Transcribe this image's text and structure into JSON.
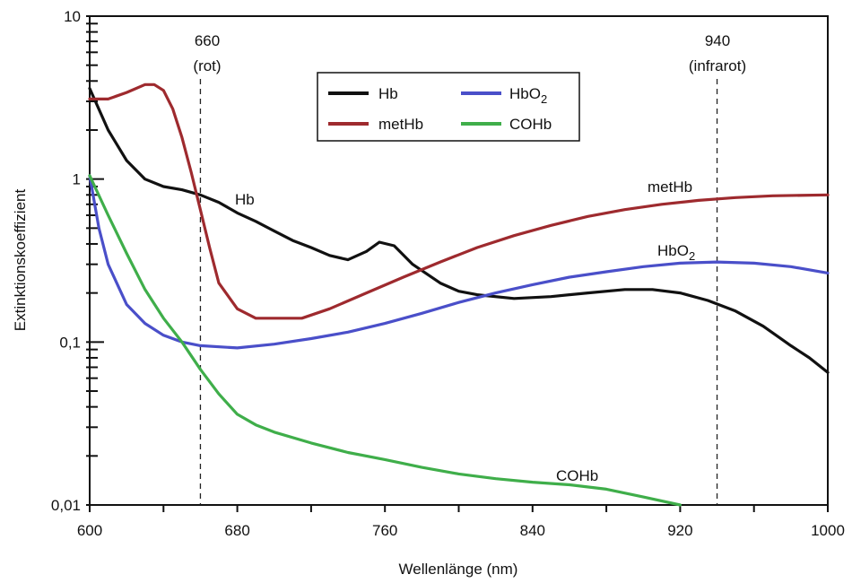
{
  "chart_data": {
    "type": "line",
    "xlabel": "Wellenlänge (nm)",
    "ylabel": "Extinktionskoeffizient",
    "xlim": [
      600,
      1000
    ],
    "ylim": [
      0.01,
      10
    ],
    "yscale": "log",
    "x_ticks": [
      "600",
      "680",
      "760",
      "840",
      "920",
      "1000"
    ],
    "y_ticks": [
      {
        "value": 10,
        "label": "10"
      },
      {
        "value": 1,
        "label": "1"
      },
      {
        "value": 0.1,
        "label": "0,1"
      },
      {
        "value": 0.01,
        "label": "0,01"
      }
    ],
    "grid": false,
    "legend_position": "top-center",
    "reference_lines": [
      {
        "x": 660,
        "label_value": "660",
        "label_note": "(rot)"
      },
      {
        "x": 940,
        "label_value": "940",
        "label_note": "(infrarot)"
      }
    ],
    "series": [
      {
        "name": "Hb",
        "legend_label": "Hb",
        "curve_label": "Hb",
        "color": "#111111",
        "points": [
          [
            600,
            3.6
          ],
          [
            610,
            2.0
          ],
          [
            620,
            1.3
          ],
          [
            630,
            1.0
          ],
          [
            640,
            0.9
          ],
          [
            650,
            0.86
          ],
          [
            660,
            0.8
          ],
          [
            670,
            0.72
          ],
          [
            680,
            0.62
          ],
          [
            690,
            0.55
          ],
          [
            700,
            0.48
          ],
          [
            710,
            0.42
          ],
          [
            720,
            0.38
          ],
          [
            730,
            0.34
          ],
          [
            740,
            0.32
          ],
          [
            750,
            0.36
          ],
          [
            757,
            0.41
          ],
          [
            765,
            0.39
          ],
          [
            775,
            0.3
          ],
          [
            790,
            0.23
          ],
          [
            800,
            0.205
          ],
          [
            810,
            0.195
          ],
          [
            830,
            0.185
          ],
          [
            850,
            0.19
          ],
          [
            870,
            0.2
          ],
          [
            890,
            0.21
          ],
          [
            905,
            0.21
          ],
          [
            920,
            0.2
          ],
          [
            935,
            0.18
          ],
          [
            950,
            0.155
          ],
          [
            965,
            0.125
          ],
          [
            980,
            0.095
          ],
          [
            990,
            0.08
          ],
          [
            1000,
            0.065
          ]
        ]
      },
      {
        "name": "HbO2",
        "legend_label": "HbO",
        "legend_sub": "2",
        "curve_label": "HbO",
        "curve_sub": "2",
        "color": "#4a4fc9",
        "points": [
          [
            600,
            1.05
          ],
          [
            605,
            0.5
          ],
          [
            610,
            0.3
          ],
          [
            620,
            0.17
          ],
          [
            630,
            0.13
          ],
          [
            640,
            0.11
          ],
          [
            650,
            0.1
          ],
          [
            660,
            0.095
          ],
          [
            680,
            0.092
          ],
          [
            700,
            0.097
          ],
          [
            720,
            0.105
          ],
          [
            740,
            0.115
          ],
          [
            760,
            0.13
          ],
          [
            780,
            0.15
          ],
          [
            800,
            0.175
          ],
          [
            820,
            0.2
          ],
          [
            840,
            0.225
          ],
          [
            860,
            0.25
          ],
          [
            880,
            0.27
          ],
          [
            900,
            0.29
          ],
          [
            920,
            0.305
          ],
          [
            940,
            0.31
          ],
          [
            960,
            0.305
          ],
          [
            980,
            0.29
          ],
          [
            1000,
            0.265
          ]
        ]
      },
      {
        "name": "metHb",
        "legend_label": "metHb",
        "curve_label": "metHb",
        "color": "#9e2a2e",
        "points": [
          [
            600,
            3.1
          ],
          [
            610,
            3.1
          ],
          [
            620,
            3.4
          ],
          [
            630,
            3.8
          ],
          [
            635,
            3.8
          ],
          [
            640,
            3.5
          ],
          [
            645,
            2.7
          ],
          [
            650,
            1.8
          ],
          [
            655,
            1.1
          ],
          [
            660,
            0.65
          ],
          [
            665,
            0.38
          ],
          [
            670,
            0.23
          ],
          [
            680,
            0.16
          ],
          [
            690,
            0.14
          ],
          [
            700,
            0.14
          ],
          [
            715,
            0.14
          ],
          [
            730,
            0.16
          ],
          [
            750,
            0.2
          ],
          [
            770,
            0.25
          ],
          [
            790,
            0.31
          ],
          [
            810,
            0.38
          ],
          [
            830,
            0.45
          ],
          [
            850,
            0.52
          ],
          [
            870,
            0.59
          ],
          [
            890,
            0.65
          ],
          [
            910,
            0.7
          ],
          [
            930,
            0.74
          ],
          [
            950,
            0.77
          ],
          [
            970,
            0.79
          ],
          [
            1000,
            0.8
          ]
        ]
      },
      {
        "name": "COHb",
        "legend_label": "COHb",
        "curve_label": "COHb",
        "color": "#3fae4a",
        "points": [
          [
            600,
            1.05
          ],
          [
            610,
            0.6
          ],
          [
            620,
            0.35
          ],
          [
            630,
            0.21
          ],
          [
            640,
            0.14
          ],
          [
            650,
            0.1
          ],
          [
            660,
            0.068
          ],
          [
            670,
            0.048
          ],
          [
            680,
            0.036
          ],
          [
            690,
            0.031
          ],
          [
            700,
            0.028
          ],
          [
            720,
            0.024
          ],
          [
            740,
            0.021
          ],
          [
            760,
            0.019
          ],
          [
            780,
            0.017
          ],
          [
            800,
            0.0155
          ],
          [
            820,
            0.0145
          ],
          [
            840,
            0.0138
          ],
          [
            860,
            0.0133
          ],
          [
            880,
            0.0125
          ],
          [
            900,
            0.0112
          ],
          [
            920,
            0.01
          ]
        ]
      }
    ]
  }
}
